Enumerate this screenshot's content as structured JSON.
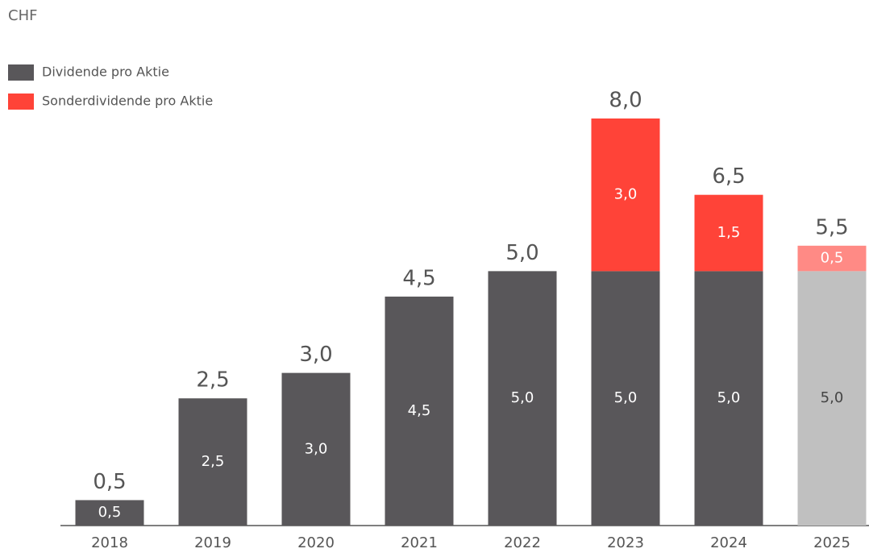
{
  "chart_data": {
    "type": "stacked_bar",
    "unit_label": "CHF",
    "categories": [
      "2018",
      "2019",
      "2020",
      "2021",
      "2022",
      "2023",
      "2024",
      "2025"
    ],
    "series": [
      {
        "name": "Dividende pro Aktie",
        "color": "#59575a",
        "colors": [
          "#59575a",
          "#59575a",
          "#59575a",
          "#59575a",
          "#59575a",
          "#59575a",
          "#59575a",
          "#c0c0c0"
        ],
        "values": [
          0.5,
          2.5,
          3.0,
          4.5,
          5.0,
          5.0,
          5.0,
          5.0
        ],
        "value_labels": [
          "0,5",
          "2,5",
          "3,0",
          "4,5",
          "5,0",
          "5,0",
          "5,0",
          "5,0"
        ]
      },
      {
        "name": "Sonderdividende pro Aktie",
        "color": "#ff4338",
        "colors": [
          "#ff4338",
          "#ff4338",
          "#ff4338",
          "#ff4338",
          "#ff4338",
          "#ff4338",
          "#ff4338",
          "#ff8a85"
        ],
        "values": [
          null,
          null,
          null,
          null,
          null,
          3.0,
          1.5,
          0.5
        ],
        "value_labels": [
          null,
          null,
          null,
          null,
          null,
          "3,0",
          "1,5",
          "0,5"
        ]
      }
    ],
    "total_labels": [
      "0,5",
      "2,5",
      "3,0",
      "4,5",
      "5,0",
      "8,0",
      "6,5",
      "5,5"
    ],
    "legend": "top-left"
  }
}
